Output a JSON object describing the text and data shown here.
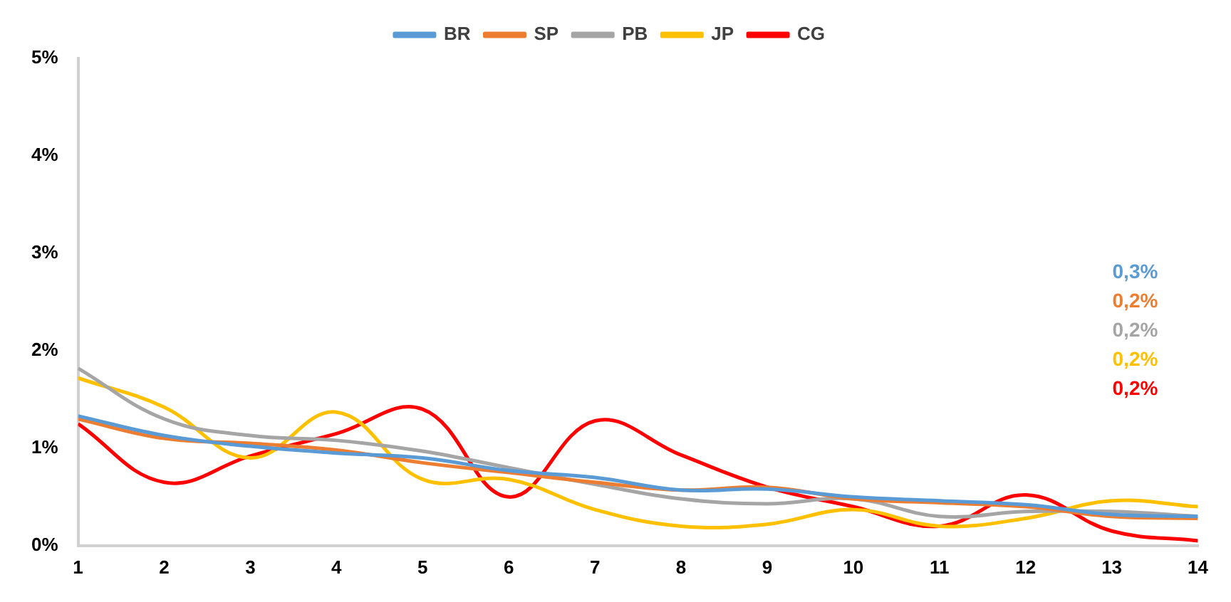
{
  "chart_data": {
    "type": "line",
    "x": [
      1,
      2,
      3,
      4,
      5,
      6,
      7,
      8,
      9,
      10,
      11,
      12,
      13,
      14
    ],
    "xlim": [
      1,
      14
    ],
    "xticks": [
      1,
      2,
      3,
      4,
      5,
      6,
      7,
      8,
      9,
      10,
      11,
      12,
      13,
      14
    ],
    "series": [
      {
        "name": "BR",
        "color": "#5b9bd5",
        "values": [
          1.33,
          1.13,
          1.02,
          0.95,
          0.9,
          0.77,
          0.7,
          0.57,
          0.58,
          0.5,
          0.46,
          0.42,
          0.32,
          0.3
        ]
      },
      {
        "name": "SP",
        "color": "#ed7d31",
        "values": [
          1.3,
          1.1,
          1.05,
          0.98,
          0.85,
          0.75,
          0.65,
          0.57,
          0.6,
          0.48,
          0.44,
          0.4,
          0.3,
          0.28
        ]
      },
      {
        "name": "PB",
        "color": "#a5a5a5",
        "values": [
          1.82,
          1.3,
          1.13,
          1.08,
          0.97,
          0.8,
          0.63,
          0.48,
          0.43,
          0.48,
          0.3,
          0.35,
          0.35,
          0.3
        ]
      },
      {
        "name": "JP",
        "color": "#ffc000",
        "values": [
          1.72,
          1.42,
          0.9,
          1.37,
          0.68,
          0.68,
          0.37,
          0.2,
          0.22,
          0.37,
          0.2,
          0.28,
          0.46,
          0.4
        ]
      },
      {
        "name": "CG",
        "color": "#ff0000",
        "values": [
          1.25,
          0.65,
          0.92,
          1.15,
          1.4,
          0.5,
          1.28,
          0.93,
          0.6,
          0.4,
          0.2,
          0.52,
          0.15,
          0.05
        ]
      }
    ],
    "ylim": [
      0,
      5
    ],
    "yticks": [
      {
        "value": 0,
        "label": "0%"
      },
      {
        "value": 1,
        "label": "1%"
      },
      {
        "value": 2,
        "label": "2%"
      },
      {
        "value": 3,
        "label": "3%"
      },
      {
        "value": 4,
        "label": "4%"
      },
      {
        "value": 5,
        "label": "5%"
      }
    ],
    "annotations": [
      "0,3%",
      "0,2%",
      "0,2%",
      "0,2%",
      "0,2%"
    ],
    "legend": "top",
    "grid": false,
    "marker": "none",
    "line_style": "solid"
  }
}
